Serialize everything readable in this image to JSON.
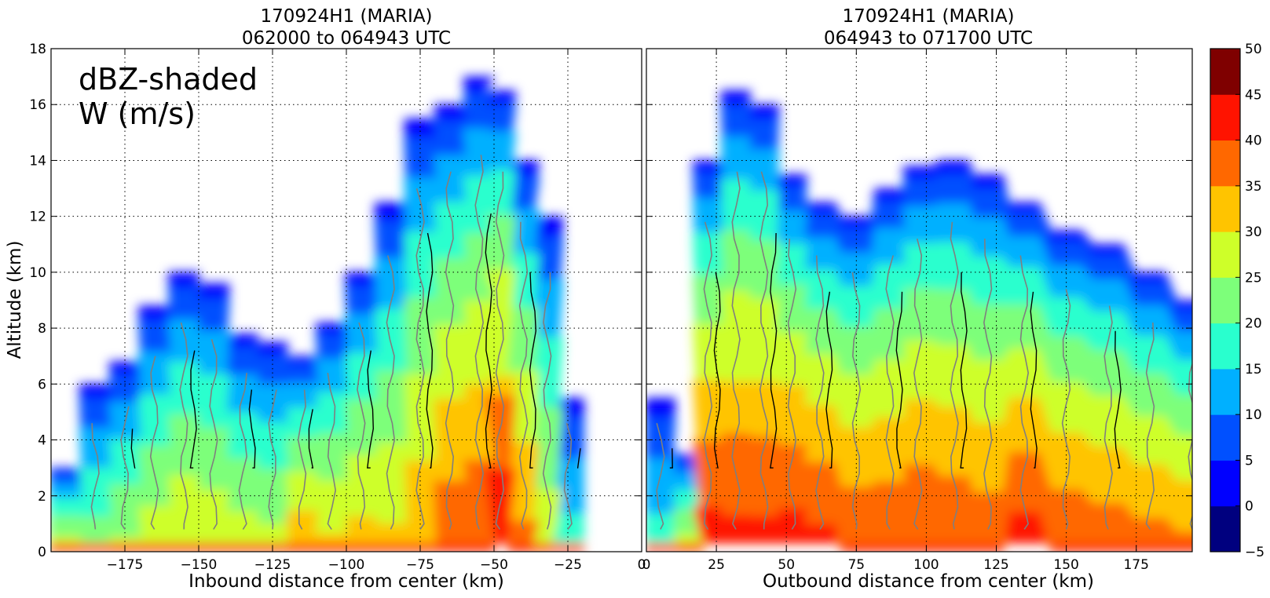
{
  "chart_data": [
    {
      "type": "heatmap",
      "title": [
        "170924H1 (MARIA)",
        "062000 to 064943 UTC"
      ],
      "xlabel": "Inbound distance from center (km)",
      "ylabel": "Altitude (km)",
      "annotation": [
        "dBZ-shaded",
        "W (m/s)"
      ],
      "xlim": [
        -200,
        0
      ],
      "ylim": [
        0,
        18
      ],
      "x_ticks": [
        -175,
        -150,
        -125,
        -100,
        -75,
        -50,
        -25,
        0
      ],
      "x_tick_labels": [
        "−175",
        "−150",
        "−125",
        "−100",
        "−75",
        "−50",
        "−25",
        "0"
      ],
      "y_ticks": [
        0,
        2,
        4,
        6,
        8,
        10,
        12,
        14,
        16,
        18
      ],
      "y_tick_labels": [
        "0",
        "2",
        "4",
        "6",
        "8",
        "10",
        "12",
        "14",
        "16",
        "18"
      ],
      "grid": true,
      "echo_columns": [
        {
          "x": -195,
          "top": 3.0,
          "core": 22
        },
        {
          "x": -185,
          "top": 6.0,
          "core": 17
        },
        {
          "x": -175,
          "top": 6.8,
          "core": 20
        },
        {
          "x": -165,
          "top": 8.8,
          "core": 22
        },
        {
          "x": -155,
          "top": 10.0,
          "core": 24
        },
        {
          "x": -145,
          "top": 9.6,
          "core": 23
        },
        {
          "x": -135,
          "top": 7.8,
          "core": 22
        },
        {
          "x": -125,
          "top": 7.5,
          "core": 21
        },
        {
          "x": -115,
          "top": 7.0,
          "core": 28
        },
        {
          "x": -105,
          "top": 8.2,
          "core": 25
        },
        {
          "x": -95,
          "top": 10.0,
          "core": 26
        },
        {
          "x": -85,
          "top": 12.5,
          "core": 25
        },
        {
          "x": -75,
          "top": 15.5,
          "core": 28
        },
        {
          "x": -65,
          "top": 16.0,
          "core": 32
        },
        {
          "x": -55,
          "top": 17.0,
          "core": 33
        },
        {
          "x": -48,
          "top": 16.5,
          "core": 38
        },
        {
          "x": -40,
          "top": 14.0,
          "core": 30
        },
        {
          "x": -32,
          "top": 12.0,
          "core": 22
        },
        {
          "x": -25,
          "top": 5.5,
          "core": 12
        }
      ],
      "w_contour_level": 1,
      "w_contour_level_strong": 5
    },
    {
      "type": "heatmap",
      "title": [
        "170924H1 (MARIA)",
        "064943 to 071700 UTC"
      ],
      "xlabel": "Outbound distance from center (km)",
      "xlim": [
        0,
        195
      ],
      "ylim": [
        0,
        18
      ],
      "x_ticks": [
        0,
        25,
        50,
        75,
        100,
        125,
        150,
        175
      ],
      "x_tick_labels": [
        "0",
        "25",
        "50",
        "75",
        "100",
        "125",
        "150",
        "175"
      ],
      "y_ticks": [
        0,
        2,
        4,
        6,
        8,
        10,
        12,
        14,
        16,
        18
      ],
      "grid": true,
      "echo_columns": [
        {
          "x": 5,
          "top": 5.5,
          "core": 12
        },
        {
          "x": 15,
          "top": 3.5,
          "core": 22
        },
        {
          "x": 22,
          "top": 14.0,
          "core": 36
        },
        {
          "x": 32,
          "top": 16.5,
          "core": 35
        },
        {
          "x": 42,
          "top": 16.0,
          "core": 35
        },
        {
          "x": 52,
          "top": 13.5,
          "core": 36
        },
        {
          "x": 62,
          "top": 12.5,
          "core": 35
        },
        {
          "x": 75,
          "top": 12.0,
          "core": 33
        },
        {
          "x": 87,
          "top": 13.0,
          "core": 33
        },
        {
          "x": 97,
          "top": 13.8,
          "core": 34
        },
        {
          "x": 110,
          "top": 14.0,
          "core": 33
        },
        {
          "x": 122,
          "top": 13.5,
          "core": 32
        },
        {
          "x": 135,
          "top": 12.5,
          "core": 36
        },
        {
          "x": 150,
          "top": 11.5,
          "core": 33
        },
        {
          "x": 165,
          "top": 11.0,
          "core": 32
        },
        {
          "x": 180,
          "top": 10.0,
          "core": 31
        },
        {
          "x": 195,
          "top": 9.0,
          "core": 30
        }
      ],
      "bright_band_altitude": 5,
      "w_contour_level": 1,
      "w_contour_level_strong": 5
    },
    {
      "type": "colorbar",
      "levels": [
        -5,
        0,
        5,
        10,
        15,
        20,
        25,
        30,
        35,
        40,
        45,
        50
      ],
      "tick_labels": [
        "−5",
        "0",
        "5",
        "10",
        "15",
        "20",
        "25",
        "30",
        "35",
        "40",
        "45",
        "50"
      ],
      "colors": [
        "#00007f",
        "#0000ff",
        "#0050ff",
        "#00b0ff",
        "#29ffce",
        "#7dff7a",
        "#ceff29",
        "#ffc400",
        "#ff6800",
        "#ff1300",
        "#7f0000"
      ]
    }
  ]
}
